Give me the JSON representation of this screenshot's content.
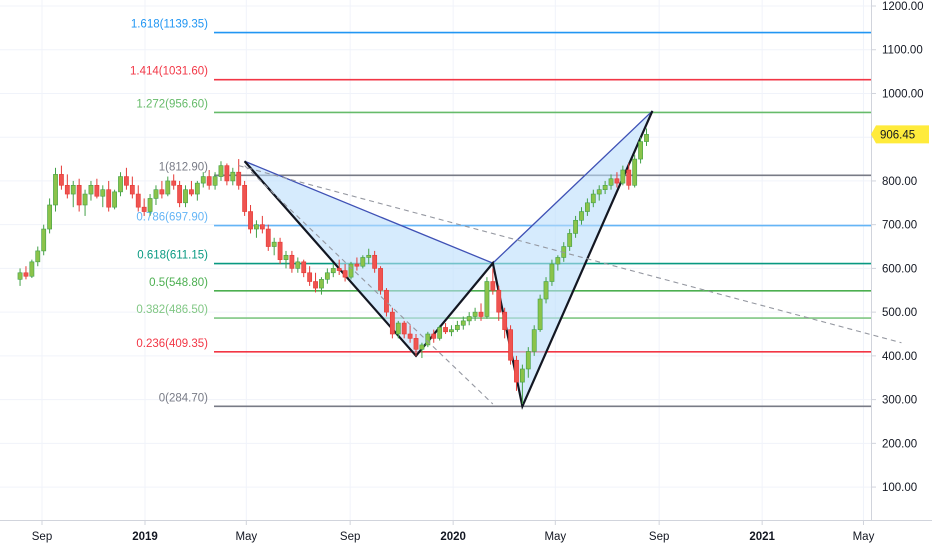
{
  "chart_data": {
    "type": "candlestick",
    "y_axis": {
      "range": [
        0,
        1260
      ],
      "ticks": [
        "1200.00",
        "1100.00",
        "1000.00",
        "900.00",
        "800.00",
        "700.00",
        "600.00",
        "500.00",
        "400.00",
        "300.00",
        "200.00",
        "100.00"
      ],
      "tick_values": [
        1200,
        1100,
        1000,
        900,
        800,
        700,
        600,
        500,
        400,
        300,
        200,
        100
      ],
      "position": "right"
    },
    "x_axis": {
      "range": [
        "2018-08-01",
        "2021-06-15"
      ],
      "ticks": [
        "Sep",
        "2019",
        "May",
        "Sep",
        "2020",
        "May",
        "Sep",
        "2021",
        "May"
      ],
      "tick_dates": [
        "2018-09-01",
        "2019-01-01",
        "2019-05-01",
        "2019-09-01",
        "2020-01-01",
        "2020-05-01",
        "2020-09-01",
        "2021-01-01",
        "2021-05-01"
      ],
      "bold_ticks": [
        "2019",
        "2020",
        "2021"
      ]
    },
    "last_price": "906.45",
    "fib_levels": [
      {
        "label": "1.618(1139.35)",
        "value": 1139.35,
        "color": "#2196f3"
      },
      {
        "label": "1.414(1031.60)",
        "value": 1031.6,
        "color": "#f23645"
      },
      {
        "label": "1.272(956.60)",
        "value": 956.6,
        "color": "#66bb6a"
      },
      {
        "label": "1(812.90)",
        "value": 812.9,
        "color": "#787b86"
      },
      {
        "label": "0.786(697.90)",
        "value": 697.9,
        "color": "#64b5f6"
      },
      {
        "label": "0.618(611.15)",
        "value": 611.15,
        "color": "#089981"
      },
      {
        "label": "0.5(548.80)",
        "value": 548.8,
        "color": "#4caf50"
      },
      {
        "label": "0.382(486.50)",
        "value": 486.5,
        "color": "#81c784"
      },
      {
        "label": "0.236(409.35)",
        "value": 409.35,
        "color": "#f23645"
      },
      {
        "label": "0(284.70)",
        "value": 284.7,
        "color": "#787b86"
      }
    ],
    "candles_weekly": [
      [
        "2018-08-06",
        575,
        600,
        560,
        590
      ],
      [
        "2018-08-13",
        590,
        605,
        575,
        582
      ],
      [
        "2018-08-20",
        582,
        620,
        578,
        615
      ],
      [
        "2018-08-27",
        615,
        650,
        605,
        640
      ],
      [
        "2018-09-03",
        640,
        700,
        630,
        690
      ],
      [
        "2018-09-10",
        690,
        760,
        680,
        745
      ],
      [
        "2018-09-17",
        745,
        830,
        730,
        815
      ],
      [
        "2018-09-24",
        815,
        835,
        780,
        790
      ],
      [
        "2018-10-01",
        790,
        815,
        760,
        770
      ],
      [
        "2018-10-08",
        770,
        800,
        740,
        790
      ],
      [
        "2018-10-15",
        790,
        805,
        730,
        745
      ],
      [
        "2018-10-22",
        745,
        780,
        720,
        770
      ],
      [
        "2018-10-29",
        770,
        800,
        755,
        790
      ],
      [
        "2018-11-05",
        790,
        805,
        760,
        765
      ],
      [
        "2018-11-12",
        765,
        790,
        740,
        780
      ],
      [
        "2018-11-19",
        780,
        800,
        730,
        740
      ],
      [
        "2018-11-26",
        740,
        780,
        735,
        775
      ],
      [
        "2018-12-03",
        775,
        820,
        765,
        810
      ],
      [
        "2018-12-10",
        810,
        830,
        780,
        790
      ],
      [
        "2018-12-17",
        790,
        810,
        760,
        770
      ],
      [
        "2018-12-24",
        770,
        790,
        730,
        740
      ],
      [
        "2018-12-31",
        740,
        760,
        720,
        730
      ],
      [
        "2019-01-07",
        730,
        770,
        720,
        760
      ],
      [
        "2019-01-14",
        760,
        790,
        745,
        780
      ],
      [
        "2019-01-21",
        780,
        800,
        760,
        770
      ],
      [
        "2019-01-28",
        770,
        810,
        765,
        800
      ],
      [
        "2019-02-04",
        800,
        815,
        780,
        790
      ],
      [
        "2019-02-11",
        790,
        800,
        740,
        750
      ],
      [
        "2019-02-18",
        750,
        790,
        740,
        780
      ],
      [
        "2019-02-25",
        780,
        800,
        765,
        770
      ],
      [
        "2019-03-04",
        770,
        800,
        755,
        795
      ],
      [
        "2019-03-11",
        795,
        820,
        785,
        810
      ],
      [
        "2019-03-18",
        810,
        825,
        780,
        790
      ],
      [
        "2019-03-25",
        790,
        820,
        780,
        810
      ],
      [
        "2019-04-01",
        810,
        845,
        800,
        835
      ],
      [
        "2019-04-08",
        835,
        840,
        790,
        800
      ],
      [
        "2019-04-15",
        800,
        830,
        790,
        820
      ],
      [
        "2019-04-22",
        820,
        850,
        780,
        790
      ],
      [
        "2019-04-29",
        790,
        800,
        720,
        730
      ],
      [
        "2019-05-06",
        730,
        745,
        680,
        690
      ],
      [
        "2019-05-13",
        690,
        710,
        670,
        700
      ],
      [
        "2019-05-20",
        700,
        720,
        680,
        690
      ],
      [
        "2019-05-27",
        690,
        700,
        640,
        650
      ],
      [
        "2019-06-03",
        650,
        670,
        630,
        660
      ],
      [
        "2019-06-10",
        660,
        670,
        610,
        620
      ],
      [
        "2019-06-17",
        620,
        640,
        600,
        630
      ],
      [
        "2019-06-24",
        630,
        640,
        590,
        600
      ],
      [
        "2019-07-01",
        600,
        625,
        590,
        615
      ],
      [
        "2019-07-08",
        615,
        620,
        580,
        590
      ],
      [
        "2019-07-15",
        590,
        605,
        560,
        570
      ],
      [
        "2019-07-22",
        570,
        590,
        545,
        555
      ],
      [
        "2019-07-29",
        555,
        580,
        540,
        575
      ],
      [
        "2019-08-05",
        575,
        600,
        565,
        590
      ],
      [
        "2019-08-12",
        590,
        610,
        580,
        600
      ],
      [
        "2019-08-19",
        600,
        620,
        585,
        595
      ],
      [
        "2019-08-26",
        595,
        610,
        570,
        580
      ],
      [
        "2019-09-02",
        580,
        615,
        575,
        610
      ],
      [
        "2019-09-09",
        610,
        625,
        595,
        605
      ],
      [
        "2019-09-16",
        605,
        630,
        600,
        625
      ],
      [
        "2019-09-23",
        625,
        645,
        610,
        630
      ],
      [
        "2019-09-30",
        630,
        640,
        590,
        600
      ],
      [
        "2019-10-07",
        600,
        605,
        540,
        550
      ],
      [
        "2019-10-14",
        550,
        555,
        490,
        500
      ],
      [
        "2019-10-21",
        500,
        510,
        440,
        450
      ],
      [
        "2019-10-28",
        450,
        480,
        440,
        475
      ],
      [
        "2019-11-04",
        475,
        480,
        440,
        450
      ],
      [
        "2019-11-11",
        450,
        470,
        430,
        440
      ],
      [
        "2019-11-18",
        440,
        450,
        400,
        415
      ],
      [
        "2019-11-25",
        415,
        430,
        395,
        425
      ],
      [
        "2019-12-02",
        425,
        455,
        420,
        450
      ],
      [
        "2019-12-09",
        450,
        460,
        430,
        440
      ],
      [
        "2019-12-16",
        440,
        470,
        435,
        465
      ],
      [
        "2019-12-23",
        465,
        475,
        450,
        455
      ],
      [
        "2019-12-30",
        455,
        470,
        445,
        460
      ],
      [
        "2020-01-06",
        460,
        480,
        455,
        470
      ],
      [
        "2020-01-13",
        470,
        490,
        460,
        480
      ],
      [
        "2020-01-20",
        480,
        500,
        470,
        490
      ],
      [
        "2020-01-27",
        490,
        510,
        480,
        500
      ],
      [
        "2020-02-03",
        500,
        520,
        480,
        490
      ],
      [
        "2020-02-10",
        490,
        580,
        485,
        570
      ],
      [
        "2020-02-17",
        570,
        600,
        540,
        550
      ],
      [
        "2020-02-24",
        550,
        560,
        480,
        500
      ],
      [
        "2020-03-02",
        500,
        510,
        440,
        460
      ],
      [
        "2020-03-09",
        460,
        470,
        380,
        390
      ],
      [
        "2020-03-16",
        390,
        400,
        320,
        340
      ],
      [
        "2020-03-23",
        340,
        380,
        290,
        370
      ],
      [
        "2020-03-30",
        370,
        420,
        350,
        410
      ],
      [
        "2020-04-06",
        410,
        470,
        400,
        460
      ],
      [
        "2020-04-13",
        460,
        540,
        455,
        530
      ],
      [
        "2020-04-20",
        530,
        580,
        520,
        570
      ],
      [
        "2020-04-27",
        570,
        620,
        560,
        610
      ],
      [
        "2020-05-04",
        610,
        630,
        595,
        625
      ],
      [
        "2020-05-11",
        625,
        660,
        615,
        650
      ],
      [
        "2020-05-18",
        650,
        690,
        640,
        680
      ],
      [
        "2020-05-25",
        680,
        720,
        670,
        710
      ],
      [
        "2020-06-01",
        710,
        740,
        700,
        730
      ],
      [
        "2020-06-08",
        730,
        760,
        720,
        750
      ],
      [
        "2020-06-15",
        750,
        780,
        740,
        770
      ],
      [
        "2020-06-22",
        770,
        790,
        755,
        780
      ],
      [
        "2020-06-29",
        780,
        800,
        770,
        790
      ],
      [
        "2020-07-06",
        790,
        815,
        780,
        805
      ],
      [
        "2020-07-13",
        805,
        820,
        785,
        795
      ],
      [
        "2020-07-20",
        795,
        835,
        790,
        825
      ],
      [
        "2020-07-27",
        825,
        840,
        780,
        790
      ],
      [
        "2020-08-03",
        790,
        860,
        785,
        850
      ],
      [
        "2020-08-10",
        850,
        900,
        840,
        890
      ],
      [
        "2020-08-17",
        890,
        920,
        880,
        906.45
      ]
    ],
    "pattern": {
      "points": [
        {
          "date": "2019-04-29",
          "price": 845
        },
        {
          "date": "2019-11-18",
          "price": 400
        },
        {
          "date": "2020-02-17",
          "price": 612
        },
        {
          "date": "2020-03-23",
          "price": 284.7
        },
        {
          "date": "2020-08-24",
          "price": 960
        }
      ],
      "fill": "#bbdefb",
      "stroke": "#131722"
    },
    "dashed_trendlines": [
      [
        {
          "date": "2019-04-22",
          "price": 835
        },
        {
          "date": "2021-06-15",
          "price": 430
        }
      ],
      [
        {
          "date": "2019-04-29",
          "price": 835
        },
        {
          "date": "2020-02-17",
          "price": 290
        }
      ]
    ]
  }
}
